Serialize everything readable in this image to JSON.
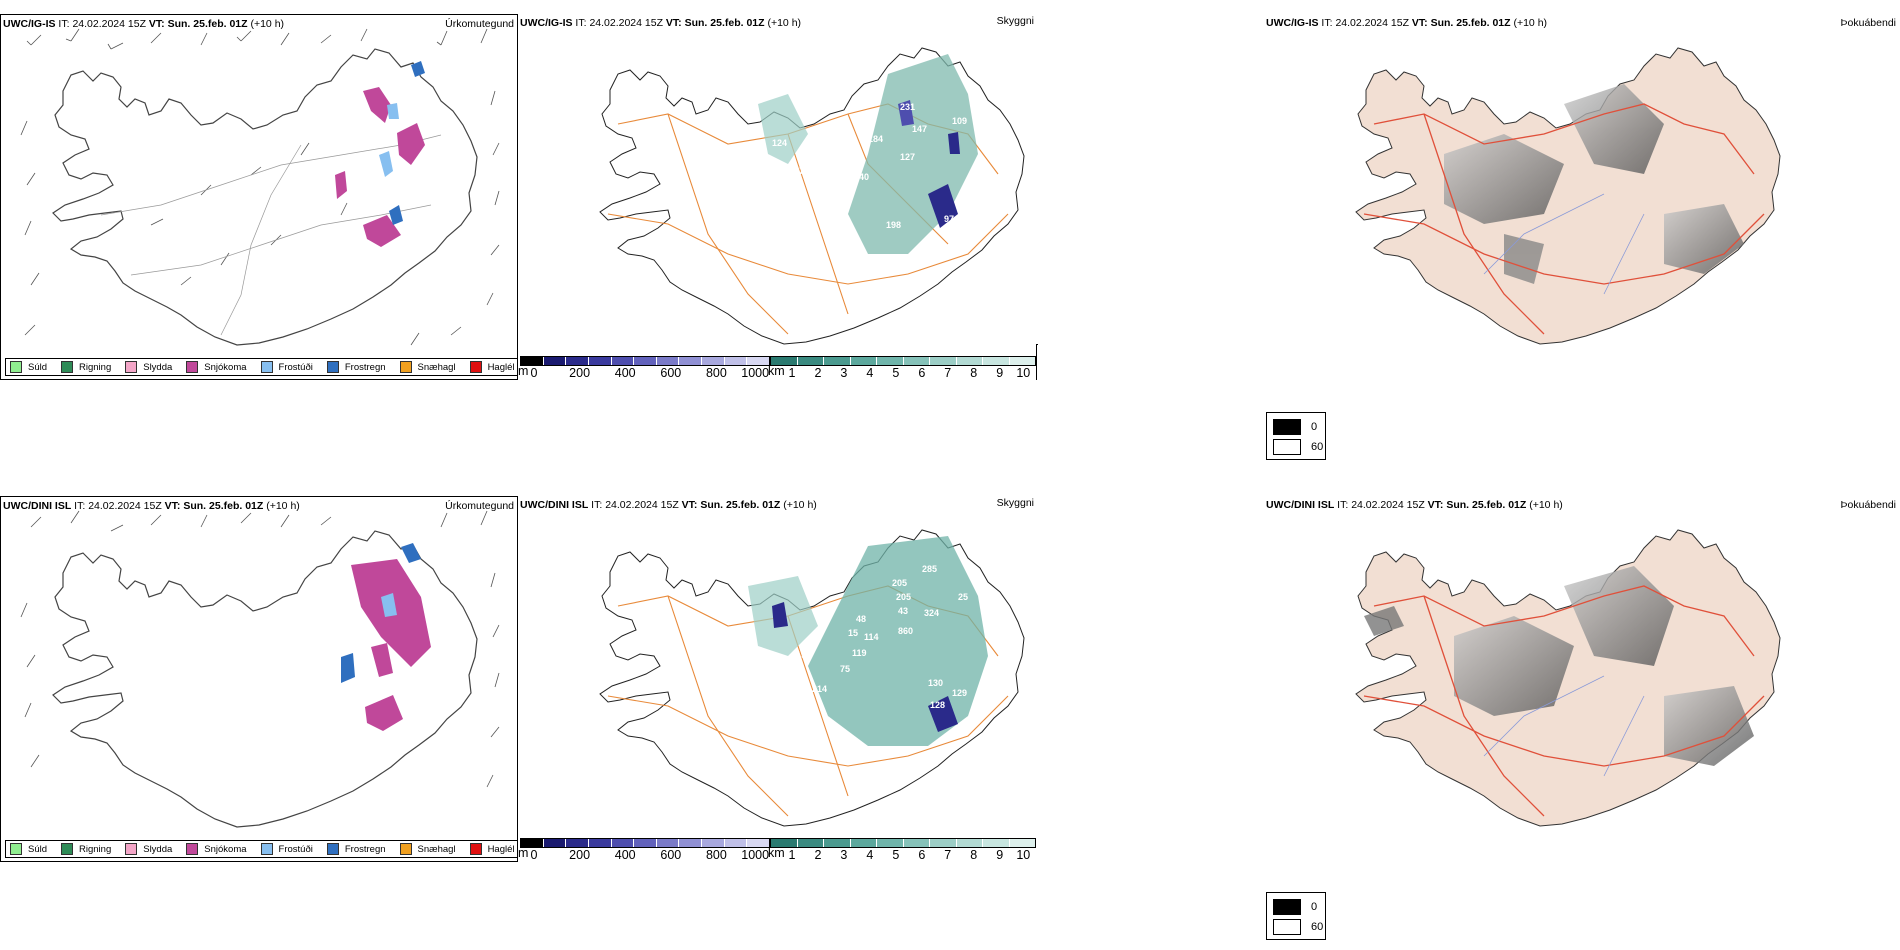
{
  "rows": [
    {
      "model": "UWC/IG-IS",
      "it_label": "IT:",
      "it_value": "24.02.2024 15Z",
      "vt_label": "VT:",
      "vt_value": "Sun. 25.feb. 01Z",
      "lead": "(+10 h)",
      "labels": [
        "231",
        "147",
        "109",
        "184",
        "127",
        "140",
        "154",
        "198",
        "97",
        "95",
        "27",
        "124"
      ]
    },
    {
      "model": "UWC/DINI ISL",
      "it_label": "IT:",
      "it_value": "24.02.2024 15Z",
      "vt_label": "VT:",
      "vt_value": "Sun. 25.feb. 01Z",
      "lead": "(+10 h)",
      "labels": [
        "205",
        "205",
        "285",
        "43",
        "324",
        "860",
        "48",
        "114",
        "119",
        "194",
        "75",
        "214",
        "130",
        "128",
        "129",
        "15",
        "25"
      ]
    }
  ],
  "panel_titles": {
    "precip": "Úrkomutegund",
    "visibility": "Skyggni",
    "fog": "Þokuábendi"
  },
  "precip_legend": [
    {
      "label": "Súld",
      "color": "#90ee90"
    },
    {
      "label": "Rigning",
      "color": "#2e8b57"
    },
    {
      "label": "Slydda",
      "color": "#f4a6c8"
    },
    {
      "label": "Snjókoma",
      "color": "#c0489a"
    },
    {
      "label": "Frostúði",
      "color": "#87bff0"
    },
    {
      "label": "Frostregn",
      "color": "#2f6fbf"
    },
    {
      "label": "Snæhagl",
      "color": "#f0a020"
    },
    {
      "label": "Haglél",
      "color": "#e01010"
    }
  ],
  "vis_m_scale": {
    "unit": "m",
    "ticks": [
      "0",
      "200",
      "400",
      "600",
      "800",
      "1000"
    ],
    "colors": [
      "#000000",
      "#1a1a70",
      "#2a2a8a",
      "#3a3a9e",
      "#4e4eae",
      "#6262bc",
      "#7a7ac8",
      "#9090d4",
      "#a8a8de",
      "#c0c0e8",
      "#d8d8f2"
    ]
  },
  "vis_km_scale": {
    "unit": "km",
    "ticks": [
      "1",
      "2",
      "3",
      "4",
      "5",
      "6",
      "7",
      "8",
      "9",
      "10"
    ],
    "colors": [
      "#2a7a70",
      "#3a8a80",
      "#4b9a8f",
      "#5ca89d",
      "#70b5ab",
      "#86c2b9",
      "#9ccec6",
      "#b2dad3",
      "#c8e6e0",
      "#ddf0ec"
    ]
  },
  "fog_legend": [
    {
      "label": "0",
      "color": "#000000"
    },
    {
      "label": "60",
      "color": "#ffffff"
    }
  ]
}
